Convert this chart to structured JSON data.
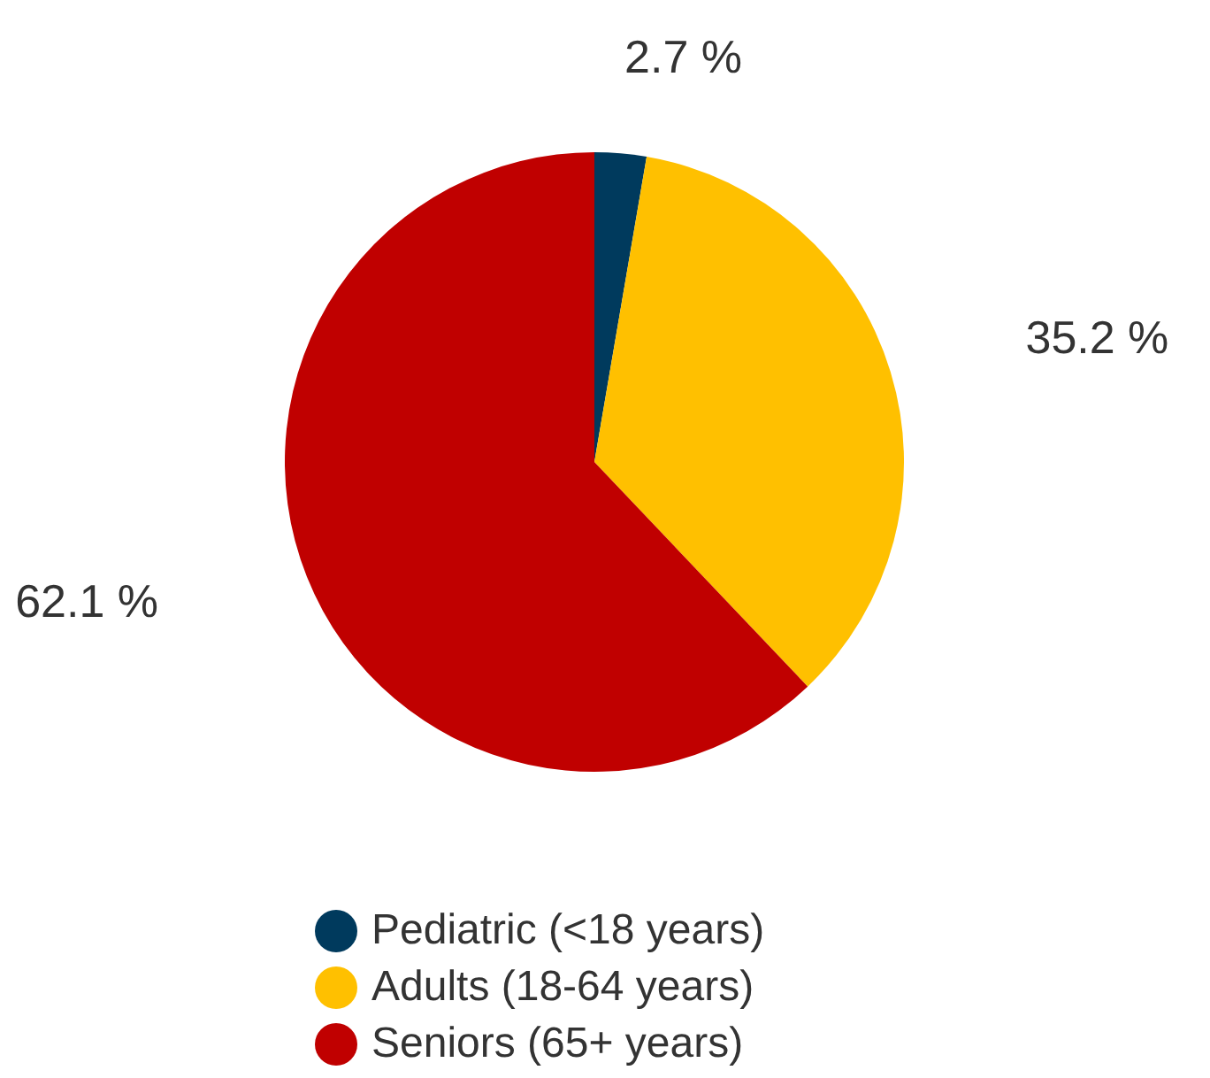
{
  "chart_data": {
    "type": "pie",
    "categories": [
      "Pediatric (<18 years)",
      "Adults (18-64 years)",
      "Seniors (65+ years)"
    ],
    "values": [
      2.7,
      35.2,
      62.1
    ],
    "colors": [
      "#003a5d",
      "#ffc000",
      "#c00000"
    ],
    "value_labels": [
      "2.7 %",
      "35.2 %",
      "62.1 %"
    ],
    "legend": "bottom"
  }
}
